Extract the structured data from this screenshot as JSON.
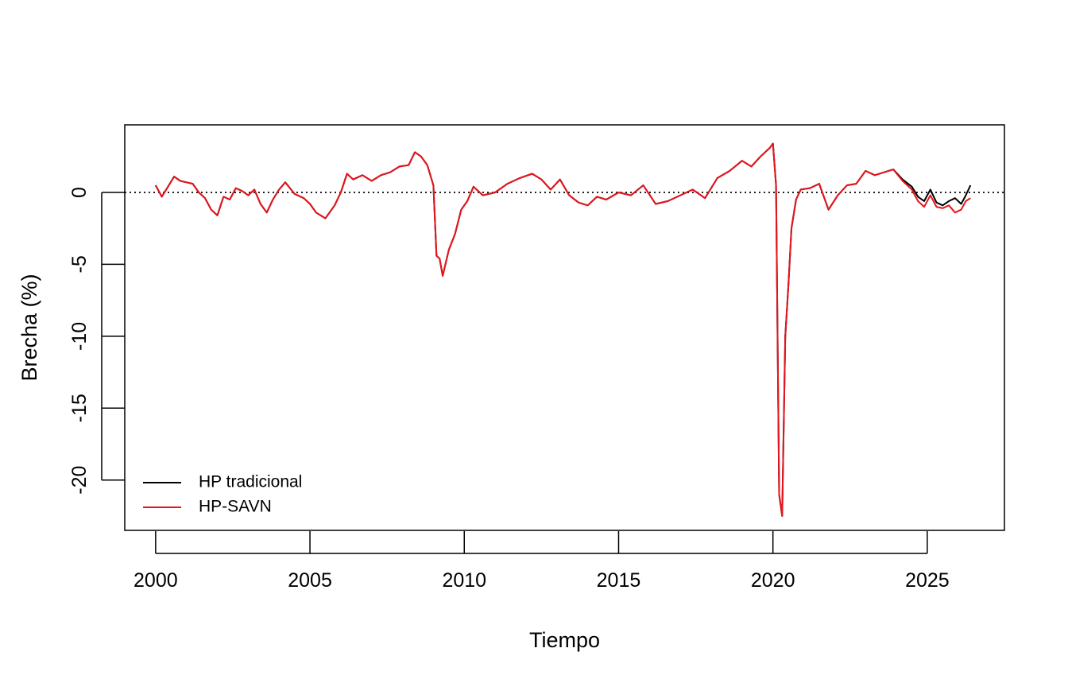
{
  "chart_data": {
    "type": "line",
    "title": "",
    "xlabel": "Tiempo",
    "ylabel": "Brecha (%)",
    "xlim": [
      1999,
      2027.5
    ],
    "ylim": [
      -23.5,
      4.7
    ],
    "x_ticks": [
      2000,
      2005,
      2010,
      2015,
      2020,
      2025
    ],
    "y_ticks": [
      0,
      -5,
      -10,
      -15,
      -20
    ],
    "y_tick_labels": [
      "0",
      "-5",
      "-10",
      "-15",
      "-20"
    ],
    "reference_line": {
      "y": 0,
      "style": "dotted"
    },
    "grid": false,
    "legend": {
      "position": "bottom-left"
    },
    "series": [
      {
        "name": "HP tradicional",
        "color": "#000000",
        "x": [
          2000.0,
          2000.2,
          2000.4,
          2000.6,
          2000.8,
          2001.0,
          2001.2,
          2001.4,
          2001.6,
          2001.8,
          2002.0,
          2002.2,
          2002.4,
          2002.6,
          2002.8,
          2003.0,
          2003.2,
          2003.4,
          2003.6,
          2003.8,
          2004.0,
          2004.2,
          2004.5,
          2004.8,
          2005.0,
          2005.2,
          2005.5,
          2005.8,
          2006.0,
          2006.2,
          2006.4,
          2006.7,
          2007.0,
          2007.3,
          2007.6,
          2007.9,
          2008.2,
          2008.4,
          2008.6,
          2008.8,
          2009.0,
          2009.1,
          2009.2,
          2009.3,
          2009.5,
          2009.7,
          2009.9,
          2010.1,
          2010.3,
          2010.6,
          2011.0,
          2011.4,
          2011.8,
          2012.2,
          2012.5,
          2012.8,
          2013.1,
          2013.4,
          2013.7,
          2014.0,
          2014.3,
          2014.6,
          2015.0,
          2015.4,
          2015.8,
          2016.2,
          2016.6,
          2017.0,
          2017.4,
          2017.8,
          2018.2,
          2018.6,
          2019.0,
          2019.3,
          2019.6,
          2019.9,
          2020.0,
          2020.1,
          2020.2,
          2020.3,
          2020.4,
          2020.5,
          2020.6,
          2020.75,
          2020.9,
          2021.2,
          2021.5,
          2021.8,
          2022.1,
          2022.4,
          2022.7,
          2023.0,
          2023.3,
          2023.6,
          2023.9,
          2024.2,
          2024.5,
          2024.7,
          2024.9,
          2025.1,
          2025.3,
          2025.5,
          2025.7,
          2025.9,
          2026.1,
          2026.25,
          2026.4
        ],
        "values": [
          0.5,
          -0.3,
          0.4,
          1.1,
          0.8,
          0.7,
          0.6,
          0.0,
          -0.4,
          -1.2,
          -1.6,
          -0.3,
          -0.5,
          0.3,
          0.1,
          -0.2,
          0.2,
          -0.8,
          -1.4,
          -0.5,
          0.2,
          0.7,
          -0.1,
          -0.4,
          -0.8,
          -1.4,
          -1.8,
          -0.9,
          0.0,
          1.3,
          0.9,
          1.2,
          0.8,
          1.2,
          1.4,
          1.8,
          1.9,
          2.8,
          2.5,
          1.9,
          0.5,
          -4.4,
          -4.6,
          -5.8,
          -4.0,
          -2.9,
          -1.2,
          -0.6,
          0.4,
          -0.2,
          0.0,
          0.6,
          1.0,
          1.3,
          0.9,
          0.2,
          0.9,
          -0.2,
          -0.7,
          -0.9,
          -0.3,
          -0.5,
          0.0,
          -0.2,
          0.5,
          -0.8,
          -0.6,
          -0.2,
          0.2,
          -0.4,
          1.0,
          1.5,
          2.2,
          1.8,
          2.5,
          3.1,
          3.4,
          0.5,
          -21.0,
          -22.5,
          -10.0,
          -6.5,
          -2.5,
          -0.5,
          0.2,
          0.3,
          0.6,
          -1.2,
          -0.2,
          0.5,
          0.6,
          1.5,
          1.2,
          1.4,
          1.6,
          0.9,
          0.4,
          -0.3,
          -0.6,
          0.2,
          -0.7,
          -0.9,
          -0.6,
          -0.4,
          -0.8,
          -0.2,
          0.5
        ]
      },
      {
        "name": "HP-SAVN",
        "color": "#e8141c",
        "x": [
          2000.0,
          2000.2,
          2000.4,
          2000.6,
          2000.8,
          2001.0,
          2001.2,
          2001.4,
          2001.6,
          2001.8,
          2002.0,
          2002.2,
          2002.4,
          2002.6,
          2002.8,
          2003.0,
          2003.2,
          2003.4,
          2003.6,
          2003.8,
          2004.0,
          2004.2,
          2004.5,
          2004.8,
          2005.0,
          2005.2,
          2005.5,
          2005.8,
          2006.0,
          2006.2,
          2006.4,
          2006.7,
          2007.0,
          2007.3,
          2007.6,
          2007.9,
          2008.2,
          2008.4,
          2008.6,
          2008.8,
          2009.0,
          2009.1,
          2009.2,
          2009.3,
          2009.5,
          2009.7,
          2009.9,
          2010.1,
          2010.3,
          2010.6,
          2011.0,
          2011.4,
          2011.8,
          2012.2,
          2012.5,
          2012.8,
          2013.1,
          2013.4,
          2013.7,
          2014.0,
          2014.3,
          2014.6,
          2015.0,
          2015.4,
          2015.8,
          2016.2,
          2016.6,
          2017.0,
          2017.4,
          2017.8,
          2018.2,
          2018.6,
          2019.0,
          2019.3,
          2019.6,
          2019.9,
          2020.0,
          2020.1,
          2020.2,
          2020.3,
          2020.4,
          2020.5,
          2020.6,
          2020.75,
          2020.9,
          2021.2,
          2021.5,
          2021.8,
          2022.1,
          2022.4,
          2022.7,
          2023.0,
          2023.3,
          2023.6,
          2023.9,
          2024.2,
          2024.5,
          2024.7,
          2024.9,
          2025.1,
          2025.3,
          2025.5,
          2025.7,
          2025.9,
          2026.1,
          2026.25,
          2026.4
        ],
        "values": [
          0.5,
          -0.3,
          0.4,
          1.1,
          0.8,
          0.7,
          0.6,
          0.0,
          -0.4,
          -1.2,
          -1.6,
          -0.3,
          -0.5,
          0.3,
          0.1,
          -0.2,
          0.2,
          -0.8,
          -1.4,
          -0.5,
          0.2,
          0.7,
          -0.1,
          -0.4,
          -0.8,
          -1.4,
          -1.8,
          -0.9,
          0.0,
          1.3,
          0.9,
          1.2,
          0.8,
          1.2,
          1.4,
          1.8,
          1.9,
          2.8,
          2.5,
          1.9,
          0.5,
          -4.4,
          -4.6,
          -5.8,
          -4.0,
          -2.9,
          -1.2,
          -0.6,
          0.4,
          -0.2,
          0.0,
          0.6,
          1.0,
          1.3,
          0.9,
          0.2,
          0.9,
          -0.2,
          -0.7,
          -0.9,
          -0.3,
          -0.5,
          0.0,
          -0.2,
          0.5,
          -0.8,
          -0.6,
          -0.2,
          0.2,
          -0.4,
          1.0,
          1.5,
          2.2,
          1.8,
          2.5,
          3.1,
          3.4,
          0.5,
          -21.0,
          -22.5,
          -10.0,
          -6.5,
          -2.5,
          -0.5,
          0.2,
          0.3,
          0.6,
          -1.2,
          -0.2,
          0.5,
          0.6,
          1.5,
          1.2,
          1.4,
          1.6,
          0.8,
          0.2,
          -0.6,
          -1.0,
          -0.2,
          -1.0,
          -1.1,
          -0.9,
          -1.4,
          -1.2,
          -0.6,
          -0.4
        ]
      }
    ]
  }
}
